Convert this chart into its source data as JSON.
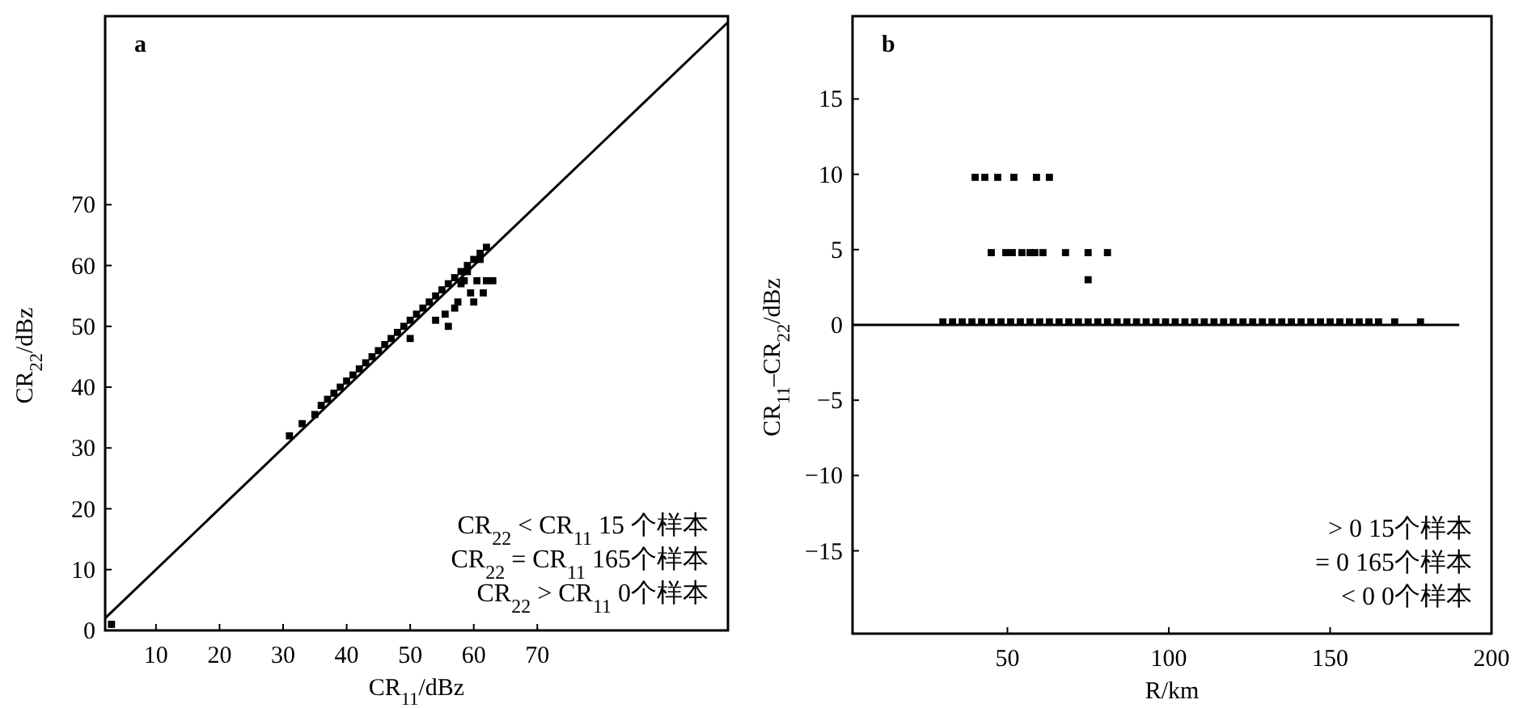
{
  "chart_data": [
    {
      "type": "scatter",
      "xlabel": "CR$_{11}$/dBz",
      "ylabel": "CR$_{22}$/dBz",
      "xlim": [
        2,
        100
      ],
      "ylim": [
        0,
        101
      ],
      "xticks": [
        10,
        20,
        30,
        40,
        50,
        60,
        70
      ],
      "yticks": [
        0,
        10,
        20,
        30,
        40,
        50,
        60,
        70
      ],
      "grid": false,
      "annotations": [
        "a",
        "CR$_{22}$ < CR$_{11}$  15 个样本",
        "CR$_{22}$ = CR$_{11}$  165个样本",
        "CR$_{22}$ > CR$_{11}$    0个样本"
      ],
      "series": [
        {
          "type": "line",
          "color": "#000000",
          "marker": "none",
          "x": [
            2,
            100
          ],
          "values": [
            2,
            100
          ]
        },
        {
          "color": "#000000",
          "marker": "square",
          "x": [
            3,
            31,
            33,
            35,
            36,
            37,
            38,
            39,
            40,
            41,
            42,
            43,
            44,
            45,
            46,
            47,
            48,
            49,
            50,
            51,
            52,
            53,
            54,
            55,
            56,
            57,
            58,
            59,
            60,
            61,
            62,
            50,
            54,
            55.5,
            56,
            57,
            57.5,
            58,
            58.5,
            59,
            59.5,
            60,
            60.5,
            61,
            61.5,
            62,
            63
          ],
          "values": [
            1,
            32,
            34,
            35.5,
            37,
            38,
            39,
            40,
            41,
            42,
            43,
            44,
            45,
            46,
            47,
            48,
            49,
            50,
            51,
            52,
            53,
            54,
            55,
            56,
            57,
            58,
            59,
            60,
            61,
            62,
            63,
            48,
            51,
            52,
            50,
            53,
            54,
            57,
            57.5,
            59,
            55.5,
            54,
            57.5,
            61,
            55.5,
            57.5,
            57.5
          ]
        }
      ]
    },
    {
      "type": "scatter",
      "xlabel": "R/km",
      "ylabel": "CR$_{11}$–CR$_{22}$/dBz",
      "xlim": [
        2,
        200
      ],
      "ylim": [
        -20.5,
        20.5
      ],
      "xticks": [
        50,
        100,
        150,
        200
      ],
      "yticks": [
        -15,
        -10,
        -5,
        0,
        5,
        10,
        15
      ],
      "grid": false,
      "annotations": [
        "b",
        "> 0  15个样本",
        "= 0  165个样本",
        "< 0  0个样本"
      ],
      "series": [
        {
          "type": "line",
          "color": "#000000",
          "marker": "none",
          "x": [
            2,
            190
          ],
          "values": [
            0,
            0
          ]
        },
        {
          "color": "#000000",
          "marker": "square",
          "x": [
            40,
            43,
            47,
            52,
            59,
            63,
            45,
            49.5,
            51.5,
            54.5,
            57,
            58.5,
            61,
            68,
            75,
            81,
            75,
            30,
            33,
            36,
            39,
            42,
            45,
            48,
            51,
            54,
            57,
            60,
            63,
            66,
            69,
            72,
            75,
            78,
            81,
            84,
            87,
            90,
            93,
            96,
            99,
            102,
            105,
            108,
            111,
            114,
            117,
            120,
            123,
            126,
            129,
            132,
            135,
            138,
            141,
            144,
            147,
            150,
            153,
            156,
            159,
            162,
            165,
            170,
            178
          ],
          "values": [
            9.8,
            9.8,
            9.8,
            9.8,
            9.8,
            9.8,
            4.8,
            4.8,
            4.8,
            4.8,
            4.8,
            4.8,
            4.8,
            4.8,
            4.8,
            4.8,
            3,
            0.2,
            0.2,
            0.2,
            0.2,
            0.2,
            0.2,
            0.2,
            0.2,
            0.2,
            0.2,
            0.2,
            0.2,
            0.2,
            0.2,
            0.2,
            0.2,
            0.2,
            0.2,
            0.2,
            0.2,
            0.2,
            0.2,
            0.2,
            0.2,
            0.2,
            0.2,
            0.2,
            0.2,
            0.2,
            0.2,
            0.2,
            0.2,
            0.2,
            0.2,
            0.2,
            0.2,
            0.2,
            0.2,
            0.2,
            0.2,
            0.2,
            0.2,
            0.2,
            0.2,
            0.2,
            0.2,
            0.2,
            0.2
          ]
        }
      ]
    }
  ]
}
